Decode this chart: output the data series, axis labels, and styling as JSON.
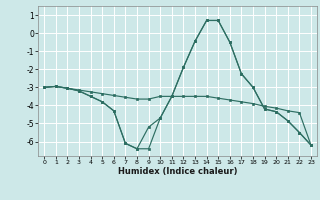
{
  "xlabel": "Humidex (Indice chaleur)",
  "bg_color": "#cde8e8",
  "grid_color": "#ffffff",
  "line_color": "#2d6e62",
  "xlim": [
    -0.5,
    23.5
  ],
  "ylim": [
    -6.8,
    1.5
  ],
  "yticks": [
    1,
    0,
    -1,
    -2,
    -3,
    -4,
    -5,
    -6
  ],
  "xticks": [
    0,
    1,
    2,
    3,
    4,
    5,
    6,
    7,
    8,
    9,
    10,
    11,
    12,
    13,
    14,
    15,
    16,
    17,
    18,
    19,
    20,
    21,
    22,
    23
  ],
  "series": [
    {
      "x": [
        0,
        1,
        2,
        3,
        4,
        5,
        6,
        7,
        8,
        9,
        10,
        11,
        12,
        13,
        14,
        15,
        16,
        17,
        18,
        19,
        20,
        21,
        22,
        23
      ],
      "y": [
        -3.0,
        -2.95,
        -3.05,
        -3.15,
        -3.25,
        -3.35,
        -3.45,
        -3.55,
        -3.65,
        -3.65,
        -3.5,
        -3.5,
        -3.5,
        -3.5,
        -3.5,
        -3.6,
        -3.7,
        -3.8,
        -3.9,
        -4.05,
        -4.15,
        -4.3,
        -4.4,
        -6.2
      ]
    },
    {
      "x": [
        0,
        1,
        2,
        3,
        4,
        5,
        6,
        7,
        8,
        9,
        10,
        11,
        12,
        13,
        14,
        15,
        16,
        17,
        18,
        19,
        20,
        21,
        22,
        23
      ],
      "y": [
        -3.0,
        -2.95,
        -3.05,
        -3.2,
        -3.5,
        -3.8,
        -4.3,
        -6.1,
        -6.4,
        -6.4,
        -4.7,
        -3.5,
        -1.9,
        -0.45,
        0.7,
        0.7,
        -0.5,
        -2.25,
        -3.0,
        -4.2,
        -4.35,
        -4.85,
        -5.5,
        -6.2
      ]
    },
    {
      "x": [
        0,
        1,
        2,
        3,
        4,
        5,
        6,
        7,
        8,
        9,
        10,
        11,
        12,
        13,
        14,
        15,
        16,
        17,
        18,
        19,
        20,
        21,
        22,
        23
      ],
      "y": [
        -3.0,
        -2.95,
        -3.05,
        -3.2,
        -3.5,
        -3.8,
        -4.3,
        -6.1,
        -6.4,
        -5.2,
        -4.7,
        -3.5,
        -1.9,
        -0.45,
        0.7,
        0.7,
        -0.5,
        -2.25,
        -3.0,
        -4.2,
        -4.35,
        -4.85,
        -5.5,
        -6.2
      ]
    }
  ]
}
